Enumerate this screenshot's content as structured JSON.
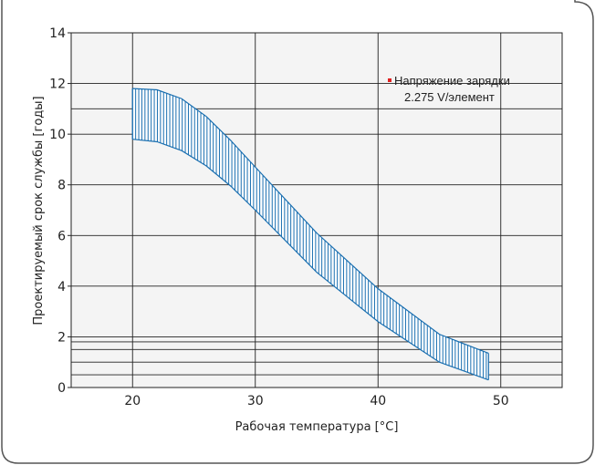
{
  "chart_data": {
    "type": "area",
    "xlabel": "Рабочая температура [°C]",
    "ylabel": "Проектируемый срок службы [годы]",
    "xlim": [
      15,
      55
    ],
    "ylim": [
      0,
      14
    ],
    "x_ticks": [
      "20",
      "30",
      "40",
      "50"
    ],
    "y_ticks": [
      "0",
      "2",
      "4",
      "6",
      "8",
      "10",
      "12",
      "14"
    ],
    "grid": true,
    "legend": "top-right",
    "legend_label_lines": [
      "Напряжение зарядки",
      "2.275 V/элемент"
    ],
    "series": [
      {
        "name": "Напряжение зарядки 2.275 V/элемент",
        "x": [
          20,
          22,
          24,
          26,
          28,
          30,
          35,
          40,
          45,
          49
        ],
        "upper": [
          11.8,
          11.75,
          11.4,
          10.7,
          9.75,
          8.7,
          6.1,
          3.9,
          2.1,
          1.35
        ],
        "lower": [
          9.8,
          9.7,
          9.35,
          8.75,
          7.95,
          7.0,
          4.55,
          2.6,
          1.0,
          0.3
        ],
        "color": "#1a6fb0",
        "fill": "hatched"
      }
    ],
    "legend_marker_color": "#e02020"
  },
  "colors": {
    "frame_border": "#555555",
    "plot_background": "#f4f4f4",
    "grid": "#222222",
    "band": "#1a6fb0"
  }
}
